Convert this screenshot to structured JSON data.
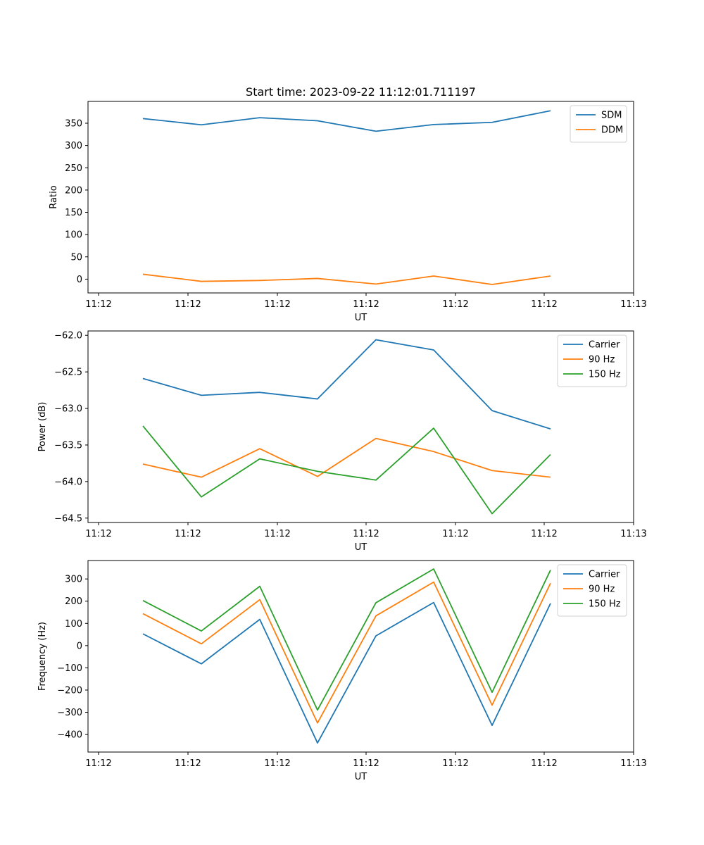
{
  "chart_data": [
    {
      "type": "line",
      "title": "Start time: 2023-09-22 11:12:01.711197",
      "xlabel": "UT",
      "ylabel": "Ratio",
      "x_tick_labels": [
        "11:12",
        "11:12",
        "11:12",
        "11:12",
        "11:12",
        "11:12",
        "11:12",
        "11:13"
      ],
      "yticks": [
        0,
        50,
        100,
        150,
        200,
        250,
        300,
        350
      ],
      "ylim": [
        -31,
        399
      ],
      "legend_position": "top-right",
      "grid": false,
      "x": [
        1,
        2,
        3,
        4,
        5,
        6,
        7,
        8
      ],
      "series": [
        {
          "name": "SDM",
          "color": "#1f77b4",
          "values": [
            360.5,
            346.5,
            362.5,
            355.5,
            332,
            347,
            352,
            378
          ]
        },
        {
          "name": "DDM",
          "color": "#ff7f0e",
          "values": [
            11,
            -5,
            -3,
            1.5,
            -11,
            7,
            -12,
            7
          ]
        }
      ]
    },
    {
      "type": "line",
      "title": "",
      "xlabel": "UT",
      "ylabel": "Power (dB)",
      "x_tick_labels": [
        "11:12",
        "11:12",
        "11:12",
        "11:12",
        "11:12",
        "11:12",
        "11:12",
        "11:13"
      ],
      "yticks": [
        -62.0,
        -62.5,
        -63.0,
        -63.5,
        -64.0,
        -64.5
      ],
      "ylim": [
        -64.56,
        -61.94
      ],
      "legend_position": "top-right",
      "grid": false,
      "x": [
        1,
        2,
        3,
        4,
        5,
        6,
        7,
        8
      ],
      "series": [
        {
          "name": "Carrier",
          "color": "#1f77b4",
          "values": [
            -62.59,
            -62.82,
            -62.78,
            -62.87,
            -62.06,
            -62.2,
            -63.03,
            -63.28
          ]
        },
        {
          "name": "90 Hz",
          "color": "#ff7f0e",
          "values": [
            -63.76,
            -63.94,
            -63.55,
            -63.93,
            -63.41,
            -63.59,
            -63.85,
            -63.94
          ]
        },
        {
          "name": "150 Hz",
          "color": "#2ca02c",
          "values": [
            -63.24,
            -64.21,
            -63.69,
            -63.86,
            -63.98,
            -63.27,
            -64.44,
            -63.63
          ]
        }
      ]
    },
    {
      "type": "line",
      "title": "",
      "xlabel": "UT",
      "ylabel": "Frequency (Hz)",
      "x_tick_labels": [
        "11:12",
        "11:12",
        "11:12",
        "11:12",
        "11:12",
        "11:12",
        "11:12",
        "11:13"
      ],
      "yticks": [
        300,
        200,
        100,
        0,
        -100,
        -200,
        -300,
        -400
      ],
      "ylim": [
        -479,
        383
      ],
      "legend_position": "top-right",
      "grid": false,
      "x": [
        1,
        2,
        3,
        4,
        5,
        6,
        7,
        8
      ],
      "series": [
        {
          "name": "Carrier",
          "color": "#1f77b4",
          "values": [
            53,
            -82,
            118,
            -438,
            44,
            194,
            -359,
            190
          ]
        },
        {
          "name": "90 Hz",
          "color": "#ff7f0e",
          "values": [
            144,
            8,
            207,
            -348,
            134,
            286,
            -268,
            281
          ]
        },
        {
          "name": "150 Hz",
          "color": "#2ca02c",
          "values": [
            203,
            66,
            267,
            -290,
            193,
            345,
            -210,
            340
          ]
        }
      ]
    }
  ]
}
